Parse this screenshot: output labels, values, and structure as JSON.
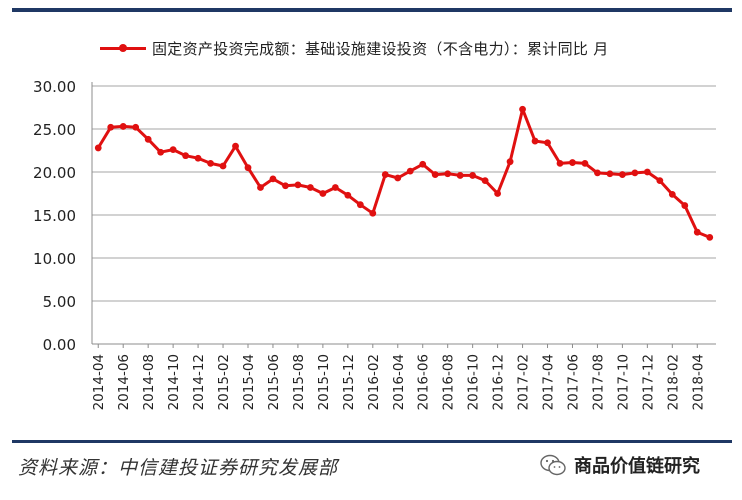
{
  "chart_data": {
    "type": "line",
    "legend": "固定资产投资完成额：基础设施建设投资（不含电力）：累计同比 月",
    "series": [
      {
        "name": "固定资产投资完成额：基础设施建设投资（不含电力）：累计同比 月",
        "color": "#e01010",
        "values": [
          22.8,
          25.2,
          25.3,
          25.2,
          23.8,
          22.3,
          22.6,
          21.9,
          21.6,
          21.0,
          20.7,
          23.0,
          20.5,
          18.2,
          19.2,
          18.4,
          18.5,
          18.2,
          17.5,
          18.2,
          17.3,
          16.2,
          15.2,
          19.7,
          19.3,
          20.1,
          20.9,
          19.7,
          19.8,
          19.6,
          19.6,
          19.0,
          17.5,
          21.2,
          27.3,
          23.6,
          23.4,
          21.0,
          21.1,
          21.0,
          19.9,
          19.8,
          19.7,
          19.9,
          20.0,
          19.0,
          17.4,
          16.1,
          13.0,
          12.4
        ]
      }
    ],
    "x_tick_labels": [
      "2014-04",
      "2014-06",
      "2014-08",
      "2014-10",
      "2014-12",
      "2015-02",
      "2015-04",
      "2015-06",
      "2015-08",
      "2015-10",
      "2015-12",
      "2016-02",
      "2016-04",
      "2016-06",
      "2016-08",
      "2016-10",
      "2016-12",
      "2017-02",
      "2017-04",
      "2017-06",
      "2017-08",
      "2017-10",
      "2017-12",
      "2018-02",
      "2018-04"
    ],
    "y_tick_labels": [
      "0.00",
      "5.00",
      "10.00",
      "15.00",
      "20.00",
      "25.00",
      "30.00"
    ],
    "ylim": [
      0,
      30
    ],
    "y_ticks": [
      0,
      5,
      10,
      15,
      20,
      25,
      30
    ],
    "grid": "horizontal"
  },
  "footer": {
    "source": "资料来源：中信建投证券研究发展部",
    "brand": "商品价值链研究",
    "brand_icon": "wechat-icon"
  }
}
